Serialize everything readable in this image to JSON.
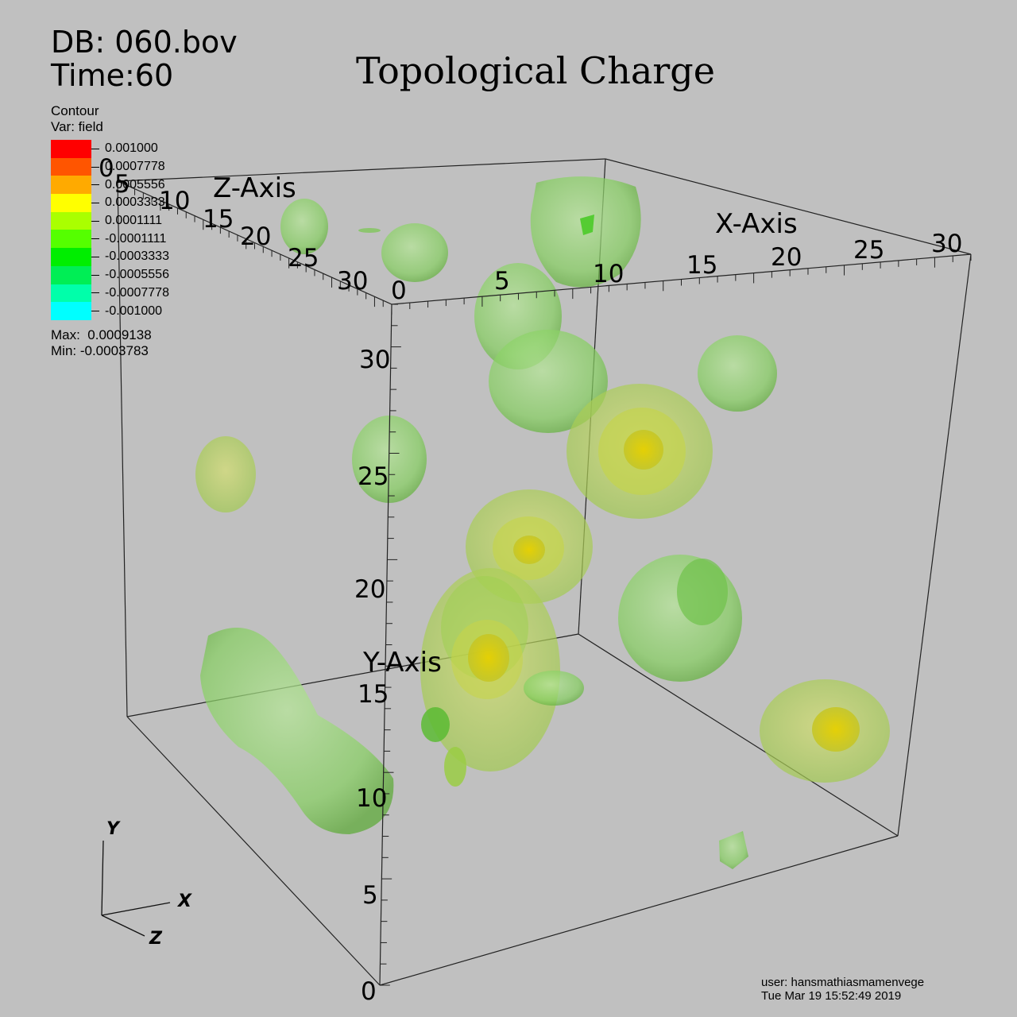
{
  "header": {
    "db": "DB: 060.bov",
    "time": "Time:60"
  },
  "title": "Topological Charge",
  "legend": {
    "plot_type": "Contour",
    "variable": "Var: field",
    "levels": [
      {
        "label": "0.001000",
        "color": "#ff0000"
      },
      {
        "label": "0.0007778",
        "color": "#ff5500"
      },
      {
        "label": "0.0005556",
        "color": "#ffaa00"
      },
      {
        "label": "0.0003333",
        "color": "#ffff00"
      },
      {
        "label": "0.0001111",
        "color": "#aaff00"
      },
      {
        "label": "-0.0001111",
        "color": "#55ff00"
      },
      {
        "label": "-0.0003333",
        "color": "#00ee00"
      },
      {
        "label": "-0.0005556",
        "color": "#00ee55"
      },
      {
        "label": "-0.0007778",
        "color": "#00ffaa"
      },
      {
        "label": "-0.001000",
        "color": "#00ffff"
      }
    ],
    "max": "Max:  0.0009138",
    "min": "Min: -0.0003783"
  },
  "axes": {
    "x_title": "X-Axis",
    "y_title": "Y-Axis",
    "z_title": "Z-Axis",
    "x_ticks": [
      "0",
      "5",
      "10",
      "15",
      "20",
      "25",
      "30"
    ],
    "y_ticks": [
      "0",
      "5",
      "10",
      "15",
      "20",
      "25",
      "30"
    ],
    "z_ticks": [
      "0",
      "5",
      "10",
      "15",
      "20",
      "25",
      "30"
    ]
  },
  "triad": {
    "x": "X",
    "y": "Y",
    "z": "Z"
  },
  "footer": {
    "user": "user: hansmathiasmamenvege",
    "date": "Tue Mar 19 15:52:49 2019"
  },
  "colors": {
    "background": "#c0c0c0",
    "blob_green": "#8fd46a",
    "blob_yellow_green": "#b8d84a",
    "blob_core": "#d8d020"
  }
}
